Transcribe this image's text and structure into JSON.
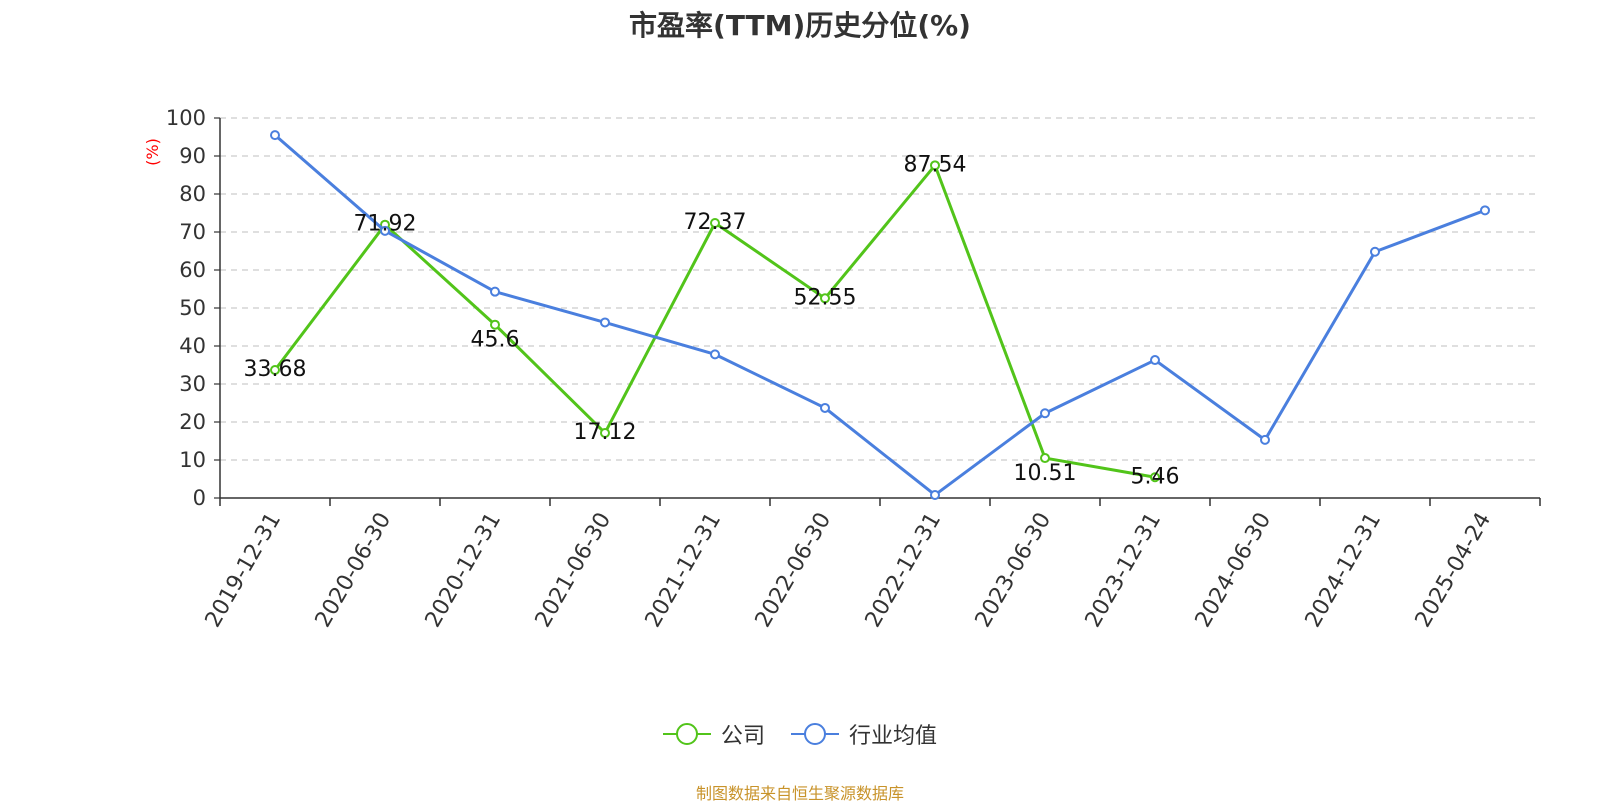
{
  "chart_data": {
    "type": "line",
    "title": "市盈率(TTM)历史分位(%)",
    "ylabel": "(%)",
    "ylim": [
      0,
      100
    ],
    "yticks": [
      0,
      10,
      20,
      30,
      40,
      50,
      60,
      70,
      80,
      90,
      100
    ],
    "grid": true,
    "legend_position": "bottom",
    "categories": [
      "2019-12-31",
      "2020-06-30",
      "2020-12-31",
      "2021-06-30",
      "2021-12-31",
      "2022-06-30",
      "2022-12-31",
      "2023-06-30",
      "2023-12-31",
      "2024-06-30",
      "2024-12-31",
      "2025-04-24"
    ],
    "series": [
      {
        "name": "公司",
        "color": "#52c41a",
        "values": [
          33.68,
          71.92,
          45.6,
          17.12,
          72.37,
          52.55,
          87.54,
          10.51,
          5.46,
          null,
          null,
          null
        ],
        "data_labels": [
          "33.68",
          "71.92",
          "45.6",
          "17.12",
          "72.37",
          "52.55",
          "87.54",
          "10.51",
          "5.46"
        ]
      },
      {
        "name": "行业均值",
        "color": "#4a7fde",
        "values": [
          95.5,
          70.3,
          54.3,
          46.2,
          37.8,
          23.7,
          0.8,
          22.3,
          36.3,
          15.3,
          64.8,
          75.7
        ]
      }
    ],
    "source": "制图数据来自恒生聚源数据库"
  }
}
